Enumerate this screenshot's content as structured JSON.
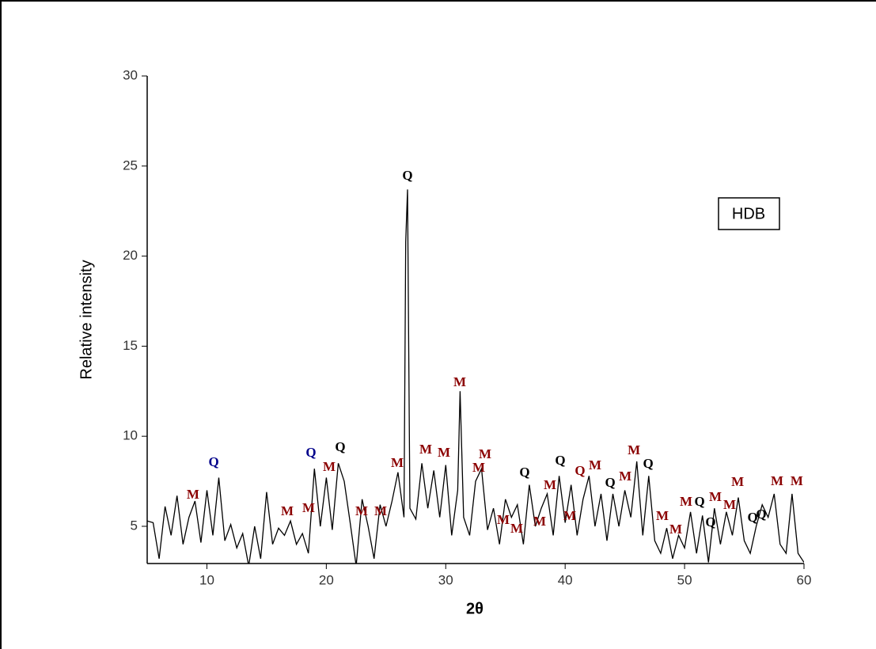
{
  "chart_data": {
    "type": "line",
    "xlabel": "2θ",
    "ylabel": "Relative intensity",
    "xlim": [
      5,
      60
    ],
    "ylim": [
      3,
      30
    ],
    "xticks": [
      10,
      20,
      30,
      40,
      50,
      60
    ],
    "yticks": [
      5,
      10,
      15,
      20,
      25,
      30
    ],
    "legend": "upper right",
    "x": [
      5,
      5.5,
      6,
      6.5,
      7,
      7.5,
      8,
      8.5,
      9,
      9.5,
      10,
      10.5,
      11,
      11.5,
      12,
      12.5,
      13,
      13.5,
      14,
      14.5,
      15,
      15.5,
      16,
      16.5,
      17,
      17.5,
      18,
      18.5,
      19,
      19.5,
      20,
      20.5,
      21,
      21.5,
      22,
      22.5,
      23,
      23.5,
      24,
      24.5,
      25,
      25.5,
      26,
      26.5,
      26.65,
      26.8,
      27,
      27.5,
      28,
      28.5,
      29,
      29.5,
      30,
      30.5,
      31,
      31.2,
      31.5,
      32,
      32.5,
      33,
      33.5,
      34,
      34.5,
      35,
      35.5,
      36,
      36.5,
      37,
      37.5,
      38,
      38.5,
      39,
      39.5,
      40,
      40.5,
      41,
      41.5,
      42,
      42.5,
      43,
      43.5,
      44,
      44.5,
      45,
      45.5,
      46,
      46.5,
      47,
      47.5,
      48,
      48.5,
      49,
      49.5,
      50,
      50.5,
      51,
      51.5,
      52,
      52.5,
      53,
      53.5,
      54,
      54.5,
      55,
      55.5,
      56,
      56.5,
      57,
      57.5,
      58,
      58.5,
      59,
      59.5,
      60
    ],
    "series": [
      {
        "name": "HDB",
        "color": "#000000",
        "values": [
          5.3,
          5.2,
          3.2,
          6.1,
          4.5,
          6.7,
          4.0,
          5.5,
          6.4,
          4.1,
          7.0,
          4.5,
          7.7,
          4.2,
          5.1,
          3.8,
          4.6,
          2.8,
          5.0,
          3.2,
          6.9,
          4.0,
          4.9,
          4.5,
          5.3,
          4.0,
          4.6,
          3.5,
          8.2,
          5.0,
          7.7,
          4.8,
          8.5,
          7.5,
          5.2,
          2.8,
          6.5,
          5.0,
          3.2,
          6.2,
          5.0,
          6.4,
          8.0,
          5.5,
          20.8,
          23.7,
          6.0,
          5.4,
          8.5,
          6.0,
          8.1,
          5.5,
          8.4,
          4.5,
          7.0,
          12.5,
          5.5,
          4.5,
          7.5,
          8.2,
          4.8,
          6.0,
          4.0,
          6.5,
          5.5,
          6.2,
          4.0,
          7.3,
          5.0,
          6.0,
          6.8,
          4.5,
          7.8,
          5.2,
          7.3,
          4.5,
          6.5,
          7.8,
          5.0,
          6.8,
          4.2,
          6.8,
          5.0,
          7.0,
          5.5,
          8.6,
          4.5,
          7.8,
          4.2,
          3.5,
          4.9,
          3.2,
          4.5,
          3.8,
          5.8,
          3.5,
          5.6,
          3.0,
          6.0,
          4.0,
          5.8,
          4.5,
          6.6,
          4.2,
          3.5,
          5.0,
          6.2,
          5.5,
          6.8,
          4.0,
          3.5,
          6.8,
          3.5,
          3.0
        ]
      }
    ],
    "annotations": [
      {
        "text": "M",
        "x": 8.84,
        "y": 6.71,
        "color": "#8b0000"
      },
      {
        "text": "Q",
        "x": 10.57,
        "y": 8.51,
        "color": "#00008b"
      },
      {
        "text": "M",
        "x": 16.73,
        "y": 5.79,
        "color": "#8b0000"
      },
      {
        "text": "M",
        "x": 18.52,
        "y": 5.97,
        "color": "#8b0000"
      },
      {
        "text": "Q",
        "x": 18.72,
        "y": 9.04,
        "color": "#00008b"
      },
      {
        "text": "M",
        "x": 20.24,
        "y": 8.25,
        "color": "#8b0000"
      },
      {
        "text": "Q",
        "x": 21.17,
        "y": 9.35,
        "color": "#000000"
      },
      {
        "text": "M",
        "x": 22.96,
        "y": 5.79,
        "color": "#8b0000"
      },
      {
        "text": "M",
        "x": 24.55,
        "y": 5.79,
        "color": "#8b0000"
      },
      {
        "text": "M",
        "x": 25.94,
        "y": 8.47,
        "color": "#8b0000"
      },
      {
        "text": "Q",
        "x": 26.8,
        "y": 24.42,
        "color": "#000000"
      },
      {
        "text": "M",
        "x": 28.33,
        "y": 9.22,
        "color": "#8b0000"
      },
      {
        "text": "M",
        "x": 29.85,
        "y": 9.04,
        "color": "#8b0000"
      },
      {
        "text": "M",
        "x": 31.18,
        "y": 12.95,
        "color": "#8b0000"
      },
      {
        "text": "M",
        "x": 32.77,
        "y": 8.21,
        "color": "#8b0000"
      },
      {
        "text": "M",
        "x": 33.3,
        "y": 8.95,
        "color": "#8b0000"
      },
      {
        "text": "M",
        "x": 34.82,
        "y": 5.31,
        "color": "#8b0000"
      },
      {
        "text": "M",
        "x": 35.95,
        "y": 4.82,
        "color": "#8b0000"
      },
      {
        "text": "Q",
        "x": 36.61,
        "y": 7.94,
        "color": "#000000"
      },
      {
        "text": "M",
        "x": 37.87,
        "y": 5.22,
        "color": "#8b0000"
      },
      {
        "text": "M",
        "x": 38.73,
        "y": 7.24,
        "color": "#8b0000"
      },
      {
        "text": "Q",
        "x": 39.59,
        "y": 8.6,
        "color": "#000000"
      },
      {
        "text": "M",
        "x": 40.39,
        "y": 5.53,
        "color": "#8b0000"
      },
      {
        "text": "Q",
        "x": 41.25,
        "y": 8.03,
        "color": "#8b0000"
      },
      {
        "text": "M",
        "x": 42.51,
        "y": 8.34,
        "color": "#8b0000"
      },
      {
        "text": "Q",
        "x": 43.77,
        "y": 7.37,
        "color": "#000000"
      },
      {
        "text": "M",
        "x": 45.03,
        "y": 7.72,
        "color": "#8b0000"
      },
      {
        "text": "M",
        "x": 45.76,
        "y": 9.17,
        "color": "#8b0000"
      },
      {
        "text": "Q",
        "x": 46.95,
        "y": 8.43,
        "color": "#000000"
      },
      {
        "text": "M",
        "x": 48.14,
        "y": 5.53,
        "color": "#8b0000"
      },
      {
        "text": "M",
        "x": 49.27,
        "y": 4.78,
        "color": "#8b0000"
      },
      {
        "text": "M",
        "x": 50.13,
        "y": 6.32,
        "color": "#8b0000"
      },
      {
        "text": "Q",
        "x": 51.26,
        "y": 6.32,
        "color": "#000000"
      },
      {
        "text": "Q",
        "x": 52.18,
        "y": 5.18,
        "color": "#000000"
      },
      {
        "text": "M",
        "x": 52.58,
        "y": 6.58,
        "color": "#8b0000"
      },
      {
        "text": "M",
        "x": 53.77,
        "y": 6.14,
        "color": "#8b0000"
      },
      {
        "text": "M",
        "x": 54.44,
        "y": 7.41,
        "color": "#8b0000"
      },
      {
        "text": "Q",
        "x": 55.7,
        "y": 5.44,
        "color": "#000000"
      },
      {
        "text": "Q",
        "x": 56.42,
        "y": 5.62,
        "color": "#000000"
      },
      {
        "text": "M",
        "x": 57.75,
        "y": 7.46,
        "color": "#8b0000"
      },
      {
        "text": "M",
        "x": 59.4,
        "y": 7.46,
        "color": "#8b0000"
      }
    ]
  }
}
